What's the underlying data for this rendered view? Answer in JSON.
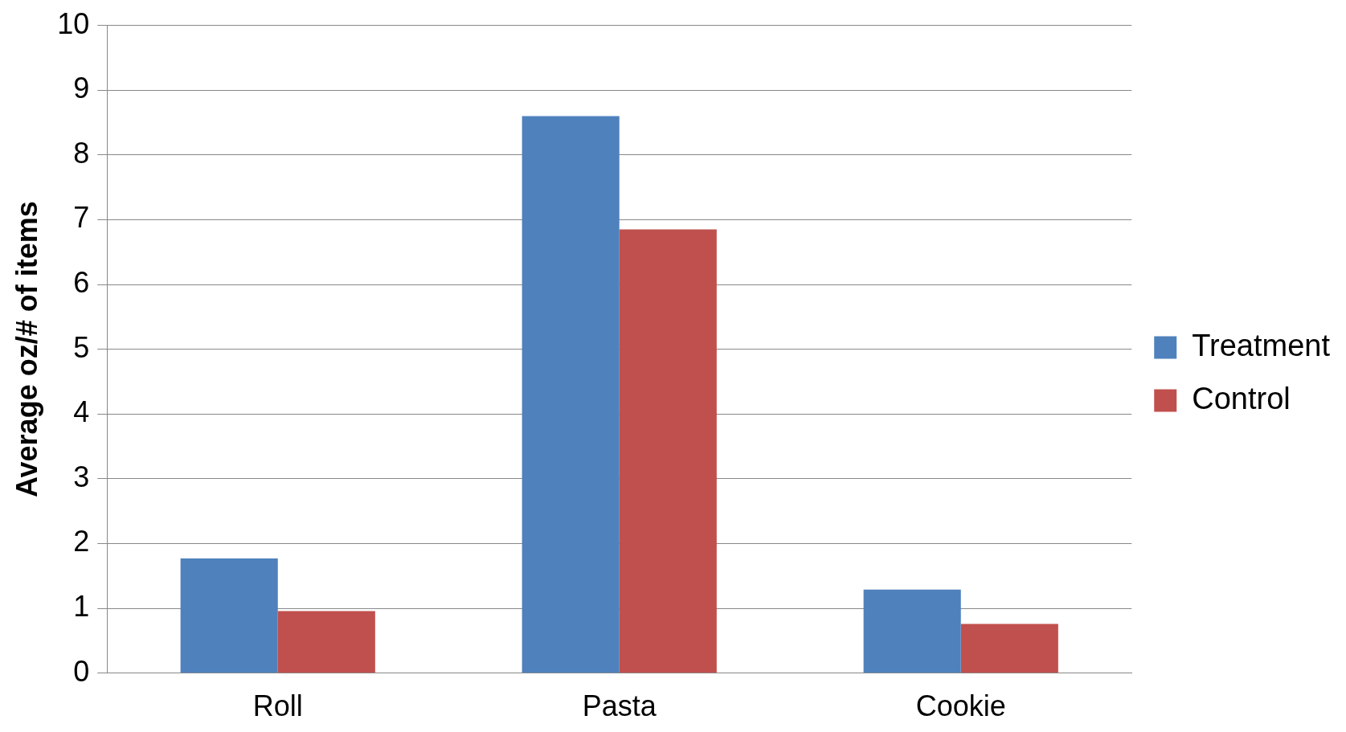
{
  "chart_data": {
    "type": "bar",
    "ylabel": "Average oz/# of items",
    "categories": [
      "Roll",
      "Pasta",
      "Cookie"
    ],
    "series": [
      {
        "name": "Treatment",
        "color": "#4f81bd",
        "values": [
          1.77,
          8.6,
          1.29
        ]
      },
      {
        "name": "Control",
        "color": "#c0504d",
        "values": [
          0.96,
          6.85,
          0.76
        ]
      }
    ],
    "ylim": [
      0,
      10
    ],
    "yticks": [
      0,
      1,
      2,
      3,
      4,
      5,
      6,
      7,
      8,
      9,
      10
    ],
    "grid": "y",
    "legend": "right"
  }
}
